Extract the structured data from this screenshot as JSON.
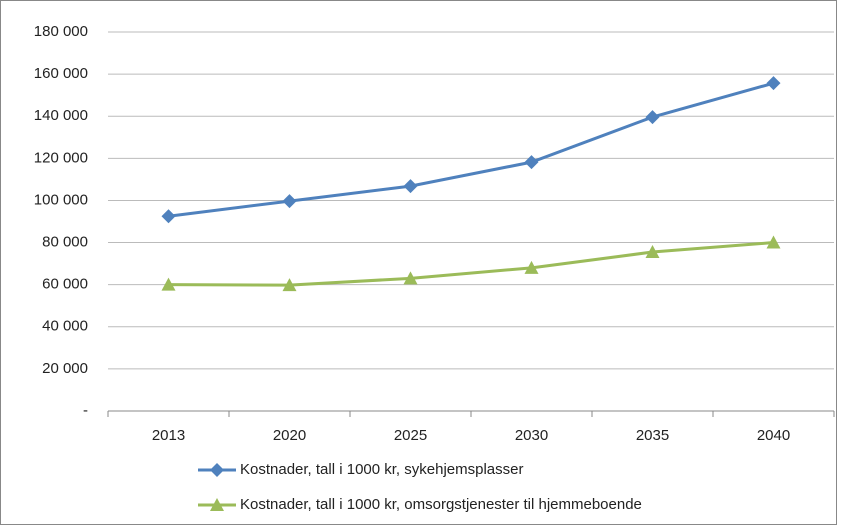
{
  "chart_data": {
    "type": "line",
    "categories": [
      "2013",
      "2020",
      "2025",
      "2030",
      "2035",
      "2040"
    ],
    "series": [
      {
        "name": "Kostnader, tall i 1000 kr, sykehjemsplasser",
        "color": "#4f81bd",
        "marker": "diamond",
        "values": [
          92500,
          99700,
          106800,
          118200,
          139600,
          155700
        ]
      },
      {
        "name": "Kostnader, tall i 1000 kr, omsorgstjenester til hjemmeboende",
        "color": "#9bbb59",
        "marker": "triangle",
        "values": [
          60000,
          59800,
          63000,
          68000,
          75500,
          80000
        ]
      }
    ],
    "ylim": [
      0,
      180000
    ],
    "yticks": [
      {
        "value": 0,
        "label": "-"
      },
      {
        "value": 20000,
        "label": "20 000"
      },
      {
        "value": 40000,
        "label": "40 000"
      },
      {
        "value": 60000,
        "label": "60 000"
      },
      {
        "value": 80000,
        "label": "80 000"
      },
      {
        "value": 100000,
        "label": "100 000"
      },
      {
        "value": 120000,
        "label": "120 000"
      },
      {
        "value": 140000,
        "label": "140 000"
      },
      {
        "value": 160000,
        "label": "160 000"
      },
      {
        "value": 180000,
        "label": "180 000"
      }
    ],
    "grid": true
  }
}
